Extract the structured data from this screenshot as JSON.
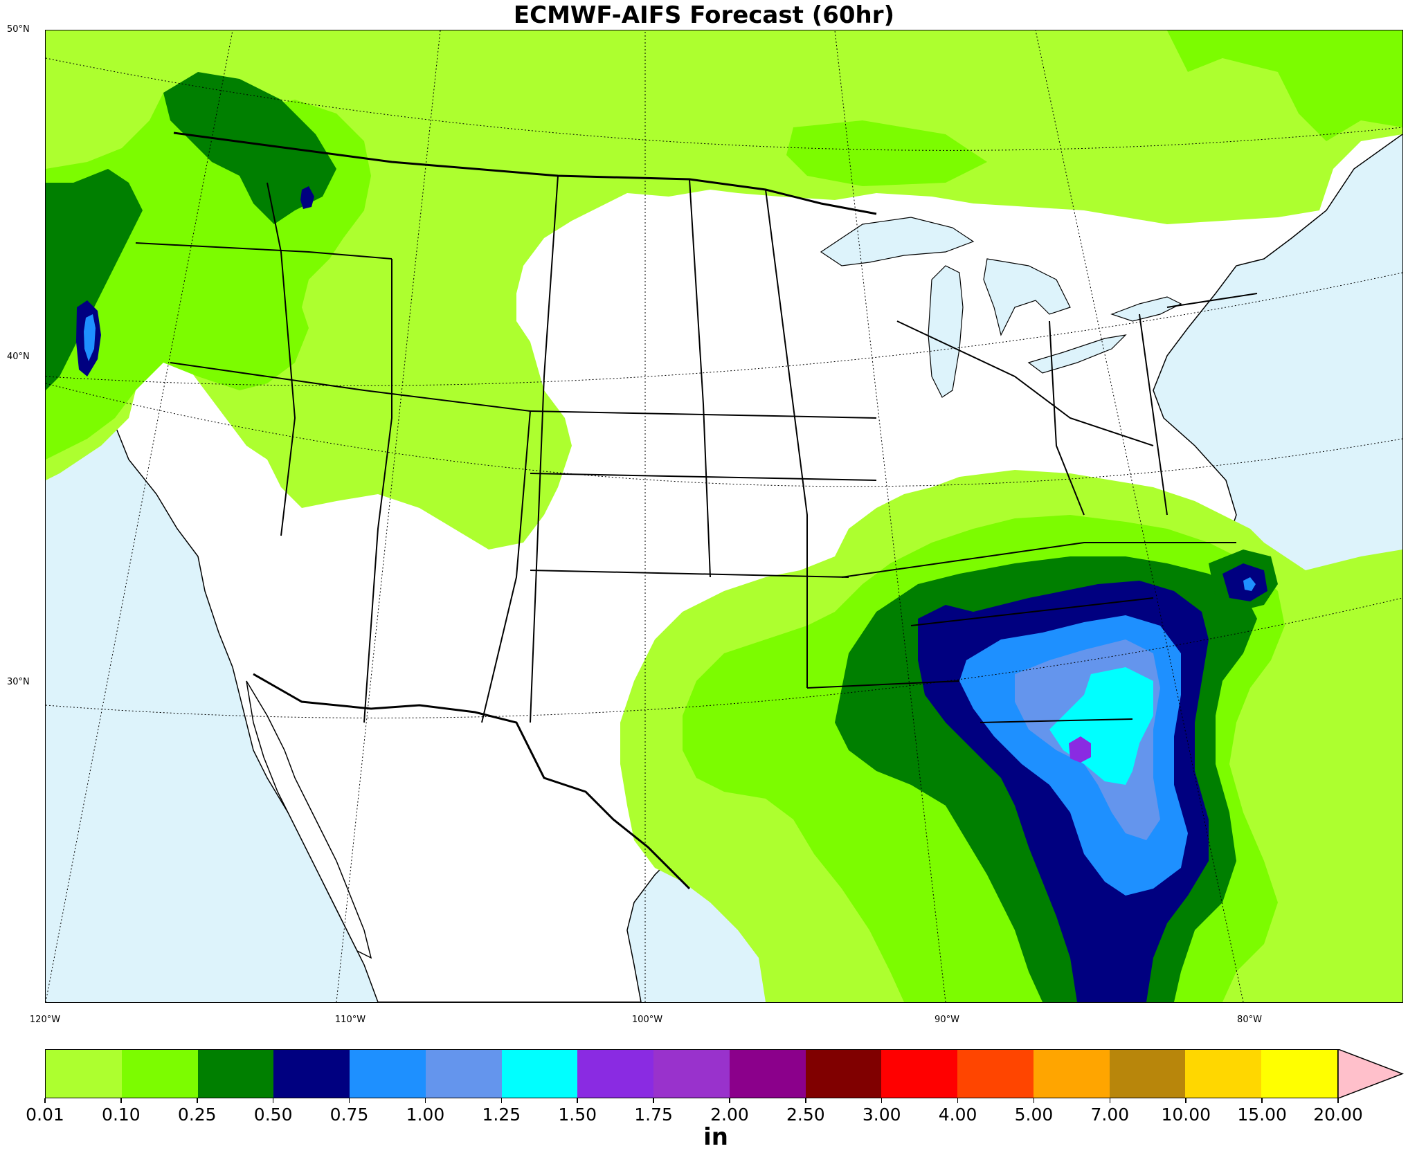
{
  "title": "ECMWF-AIFS Forecast (60hr)",
  "map": {
    "ocean_color": "#ddf3fb",
    "land_color": "#ffffff",
    "lat_labels": [
      "50°N",
      "40°N",
      "30°N"
    ],
    "lon_labels": [
      "120°W",
      "110°W",
      "100°W",
      "90°W",
      "80°W"
    ]
  },
  "colorbar": {
    "unit": "in",
    "ticks": [
      "0.01",
      "0.10",
      "0.25",
      "0.50",
      "0.75",
      "1.00",
      "1.25",
      "1.50",
      "1.75",
      "2.00",
      "2.50",
      "3.00",
      "4.00",
      "5.00",
      "7.00",
      "10.00",
      "15.00",
      "20.00"
    ],
    "colors": [
      "#adff2f",
      "#7cfc00",
      "#007f00",
      "#000080",
      "#1e90ff",
      "#6495ed",
      "#00ffff",
      "#8a2be2",
      "#9932cc",
      "#8b008b",
      "#800000",
      "#ff0000",
      "#ff4500",
      "#ffa500",
      "#b8860b",
      "#ffd700",
      "#ffff00"
    ],
    "extend_color": "#ffc0cb"
  },
  "precip_colors": {
    "c001": "#adff2f",
    "c010": "#7cfc00",
    "c025": "#007f00",
    "c050": "#000080",
    "c075": "#1e90ff",
    "c100": "#6495ed",
    "c125": "#00ffff",
    "c150": "#8a2be2"
  }
}
